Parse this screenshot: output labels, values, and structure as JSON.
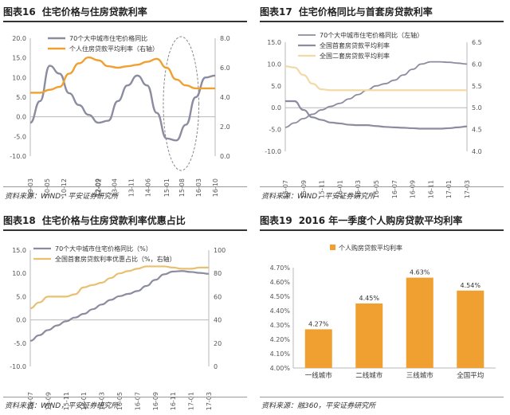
{
  "panels": {
    "p16": {
      "num": "图表16",
      "title": "住宅价格与住房贷款利率",
      "source": "资料来源：WIND，平安证券研究所"
    },
    "p17": {
      "num": "图表17",
      "title": "住宅价格同比与首套房贷款利率",
      "source": "资料来源：WIND，平安证券研究所"
    },
    "p18": {
      "num": "图表18",
      "title": "住宅价格与住房贷款利率优惠占比",
      "source": "资料来源：WIND，平安证券研究所"
    },
    "p19": {
      "num": "图表19",
      "title": "2016 年一季度个人购房贷款平均利率",
      "source": "资料来源：融360，平安证券研究所"
    }
  },
  "colors": {
    "gray": "#8c8ca0",
    "orange": "#f0a030",
    "gold": "#e8c070",
    "light": "#f2d9a8",
    "axis": "#b8b8b8",
    "highlight": "#888888"
  },
  "chart_data": [
    {
      "id": "p16",
      "type": "line",
      "x": [
        "09-03",
        "09-08",
        "10-01",
        "10-06",
        "10-11",
        "11-04",
        "11-09",
        "12-02",
        "12-07",
        "12-12",
        "13-05",
        "13-10",
        "14-03",
        "14-08",
        "15-01",
        "15-06",
        "15-11",
        "16-04",
        "16-09",
        "17-02"
      ],
      "xticks": [
        "09-03",
        "10-05",
        "10-12",
        "12-02",
        "12-09",
        "13-04",
        "13-11",
        "14-06",
        "15-01",
        "15-08",
        "16-03",
        "16-10"
      ],
      "ylim": [
        -10,
        20
      ],
      "yticks": [
        -10.0,
        -5.0,
        0.0,
        5.0,
        10.0,
        15.0,
        20.0
      ],
      "y2lim": [
        0,
        8
      ],
      "y2ticks": [
        0.0,
        2.0,
        4.0,
        6.0,
        8.0
      ],
      "series": [
        {
          "name": "70个大中城市住宅价格同比",
          "axis": "left",
          "color": "#8c8ca0",
          "values": [
            -1.5,
            4,
            13,
            11,
            6,
            3,
            0.5,
            -1.5,
            -1,
            4,
            8,
            10.5,
            8,
            1,
            -5.5,
            -6,
            -2,
            5,
            10,
            10.5
          ]
        },
        {
          "name": "个人住房贷款平均利率（右轴）",
          "axis": "right",
          "color": "#f0a030",
          "values": [
            4.3,
            4.3,
            4.5,
            4.7,
            5.6,
            6.3,
            6.7,
            6.5,
            6.1,
            6.0,
            6.1,
            6.2,
            6.4,
            6.6,
            6.0,
            5.2,
            4.8,
            4.6,
            4.6,
            4.6
          ]
        }
      ],
      "highlight": {
        "x_from": "15-01",
        "x_to": "16-04"
      }
    },
    {
      "id": "p17",
      "type": "line",
      "x": [
        "15-07",
        "15-08",
        "15-09",
        "15-10",
        "15-11",
        "15-12",
        "16-01",
        "16-02",
        "16-03",
        "16-04",
        "16-05",
        "16-06",
        "16-07",
        "16-08",
        "16-09",
        "16-10",
        "16-11",
        "16-12",
        "17-01",
        "17-02",
        "17-03"
      ],
      "xticks": [
        "15-07",
        "15-09",
        "15-11",
        "16-01",
        "16-03",
        "16-05",
        "16-07",
        "16-09",
        "16-11",
        "17-01",
        "17-03"
      ],
      "ylim": [
        -10,
        15
      ],
      "yticks": [
        -10.0,
        -5.0,
        0.0,
        5.0,
        10.0,
        15.0
      ],
      "y2lim": [
        4.0,
        6.5
      ],
      "y2ticks": [
        4.0,
        4.5,
        5.0,
        5.5,
        6.0,
        6.5
      ],
      "series": [
        {
          "name": "70个大中城市住宅价格同比（左轴）",
          "axis": "left",
          "color": "#8c8ca0",
          "values": [
            -4.5,
            -3.5,
            -2.5,
            -1.5,
            -0.5,
            0.3,
            1.0,
            2.0,
            3.0,
            4.0,
            5.0,
            5.5,
            6.3,
            7.5,
            8.8,
            10.0,
            10.5,
            10.5,
            10.4,
            10.2,
            10.0
          ]
        },
        {
          "name": "全国首套房贷款平均利率",
          "axis": "right",
          "color": "#8c8ca0",
          "values": [
            5.15,
            5.15,
            4.95,
            4.78,
            4.72,
            4.66,
            4.64,
            4.61,
            4.6,
            4.6,
            4.58,
            4.56,
            4.55,
            4.54,
            4.53,
            4.52,
            4.52,
            4.52,
            4.53,
            4.55,
            4.57
          ]
        },
        {
          "name": "全国二套房贷款平均利率",
          "axis": "right",
          "color": "#f2d9a8",
          "values": [
            5.95,
            5.92,
            5.75,
            5.55,
            5.42,
            5.4,
            5.4,
            5.4,
            5.4,
            5.4,
            5.4,
            5.4,
            5.4,
            5.4,
            5.4,
            5.4,
            5.4,
            5.4,
            5.4,
            5.4,
            5.4
          ]
        }
      ]
    },
    {
      "id": "p18",
      "type": "line",
      "x": [
        "15-07",
        "15-08",
        "15-09",
        "15-10",
        "15-11",
        "15-12",
        "16-01",
        "16-02",
        "16-03",
        "16-04",
        "16-05",
        "16-06",
        "16-07",
        "16-08",
        "16-09",
        "16-10",
        "16-11",
        "16-12",
        "17-01",
        "17-02",
        "17-03"
      ],
      "xticks": [
        "15-07",
        "15-09",
        "15-11",
        "16-01",
        "16-03",
        "16-05",
        "16-07",
        "16-09",
        "16-11",
        "17-01",
        "17-03"
      ],
      "ylim": [
        -10,
        15
      ],
      "yticks": [
        -10.0,
        -5.0,
        0.0,
        5.0,
        10.0,
        15.0
      ],
      "y2lim": [
        0,
        100
      ],
      "y2ticks": [
        0,
        20,
        40,
        60,
        80,
        100
      ],
      "series": [
        {
          "name": "70个大中城市住宅价格同比（%）",
          "axis": "left",
          "color": "#8c8ca0",
          "values": [
            -4.5,
            -3.3,
            -2.2,
            -1.2,
            -0.3,
            0.5,
            1.3,
            2.3,
            3.3,
            4.3,
            5.1,
            5.6,
            6.2,
            7.3,
            8.6,
            9.8,
            10.4,
            10.5,
            10.3,
            10.1,
            9.9
          ]
        },
        {
          "name": "全国首套房贷款利率优惠占比（%，右轴）",
          "axis": "right",
          "color": "#e8c070",
          "values": [
            50,
            55,
            60,
            60,
            60,
            62,
            68,
            70,
            72,
            76,
            80,
            82,
            84,
            86,
            86,
            86,
            85,
            84,
            84,
            85,
            85
          ]
        }
      ]
    },
    {
      "id": "p19",
      "type": "bar",
      "categories": [
        "一线城市",
        "二线城市",
        "三线城市",
        "全国平均"
      ],
      "values": [
        4.27,
        4.45,
        4.63,
        4.54
      ],
      "labels": [
        "4.27%",
        "4.45%",
        "4.63%",
        "4.54%"
      ],
      "series_name": "个人购房贷款平均利率",
      "color": "#f0a030",
      "ylim": [
        4.0,
        4.7
      ],
      "yticks": [
        "4.00%",
        "4.10%",
        "4.20%",
        "4.30%",
        "4.40%",
        "4.50%",
        "4.60%",
        "4.70%"
      ]
    }
  ]
}
